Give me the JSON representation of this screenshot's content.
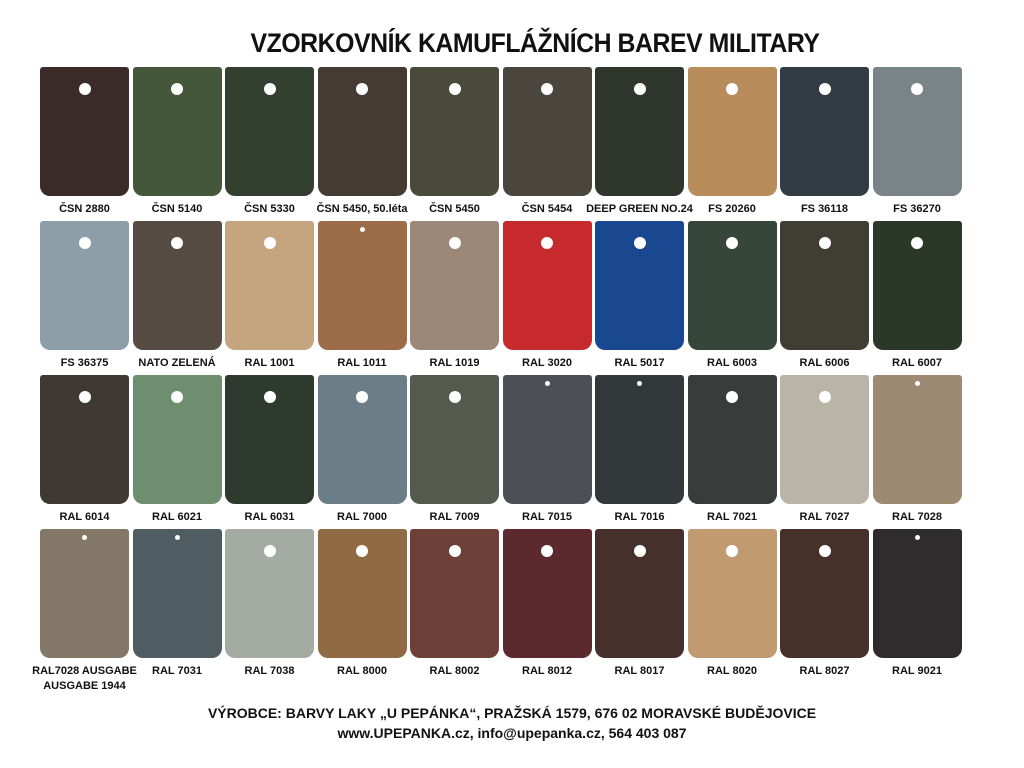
{
  "title": "VZORKOVNÍK KAMUFLÁŽNÍCH BAREV MILITARY",
  "rows": [
    [
      {
        "label": "ČSN 2880",
        "color": "#3a2a28",
        "hole": "large"
      },
      {
        "label": "ČSN 5140",
        "color": "#44573a",
        "hole": "large"
      },
      {
        "label": "ČSN 5330",
        "color": "#33402f",
        "hole": "large"
      },
      {
        "label": "ČSN 5450, 50.léta",
        "color": "#463b33",
        "hole": "large"
      },
      {
        "label": "ČSN 5450",
        "color": "#4a4a3a",
        "hole": "large"
      },
      {
        "label": "ČSN 5454",
        "color": "#4a463e",
        "hole": "large"
      },
      {
        "label": "DEEP GREEN NO.24",
        "color": "#2f372c",
        "hole": "large"
      },
      {
        "label": "FS 20260",
        "color": "#b98c5c",
        "hole": "large"
      },
      {
        "label": "FS 36118",
        "color": "#333b45",
        "hole": "large"
      },
      {
        "label": "FS 36270",
        "color": "#7a8387",
        "hole": "large"
      }
    ],
    [
      {
        "label": "FS 36375",
        "color": "#8d9ea8",
        "hole": "large"
      },
      {
        "label": "NATO ZELENÁ",
        "color": "#574c43",
        "hole": "large"
      },
      {
        "label": "RAL 1001",
        "color": "#c4a580",
        "hole": "large"
      },
      {
        "label": "RAL 1011",
        "color": "#9c6c48",
        "hole": "small"
      },
      {
        "label": "RAL 1019",
        "color": "#9b8878",
        "hole": "large"
      },
      {
        "label": "RAL 3020",
        "color": "#c62a2c",
        "hole": "large"
      },
      {
        "label": "RAL 5017",
        "color": "#1a4890",
        "hole": "large"
      },
      {
        "label": "RAL 6003",
        "color": "#37463a",
        "hole": "large"
      },
      {
        "label": "RAL 6006",
        "color": "#403d35",
        "hole": "large"
      },
      {
        "label": "RAL 6007",
        "color": "#2b3828",
        "hole": "large"
      }
    ],
    [
      {
        "label": "RAL 6014",
        "color": "#3e3932",
        "hole": "large"
      },
      {
        "label": "RAL 6021",
        "color": "#6d8f70",
        "hole": "large"
      },
      {
        "label": "RAL 6031",
        "color": "#2d3a2d",
        "hole": "large"
      },
      {
        "label": "RAL 7000",
        "color": "#6b7d87",
        "hole": "large"
      },
      {
        "label": "RAL 7009",
        "color": "#555a4f",
        "hole": "large"
      },
      {
        "label": "RAL 7015",
        "color": "#4c4f55",
        "hole": "small"
      },
      {
        "label": "RAL 7016",
        "color": "#33383a",
        "hole": "small"
      },
      {
        "label": "RAL 7021",
        "color": "#383c3a",
        "hole": "large"
      },
      {
        "label": "RAL 7027",
        "color": "#b8b5a6",
        "hole": "large"
      },
      {
        "label": "RAL 7028",
        "color": "#9e8a72",
        "hole": "small"
      }
    ],
    [
      {
        "label": "RAL7028 AUSGABE\nAUSGABE 1944",
        "color": "#837868",
        "hole": "small"
      },
      {
        "label": "RAL 7031",
        "color": "#4f5d62",
        "hole": "small"
      },
      {
        "label": "RAL 7038",
        "color": "#a3aba3",
        "hole": "large"
      },
      {
        "label": "RAL 8000",
        "color": "#8f6a43",
        "hole": "large"
      },
      {
        "label": "RAL 8002",
        "color": "#6d4038",
        "hole": "large"
      },
      {
        "label": "RAL 8012",
        "color": "#5c2a2e",
        "hole": "large"
      },
      {
        "label": "RAL 8017",
        "color": "#45302c",
        "hole": "large"
      },
      {
        "label": "RAL 8020",
        "color": "#c19a70",
        "hole": "large"
      },
      {
        "label": "RAL 8027",
        "color": "#45302a",
        "hole": "large"
      },
      {
        "label": "RAL 9021",
        "color": "#2e2c2c",
        "hole": "small"
      }
    ]
  ],
  "footer": {
    "line1": "VÝROBCE: BARVY LAKY „U PEPÁNKA“, PRAŽSKÁ 1579, 676 02 MORAVSKÉ BUDĚJOVICE",
    "line2": "www.UPEPANKA.cz, info@upepanka.cz, 564 403 087"
  }
}
